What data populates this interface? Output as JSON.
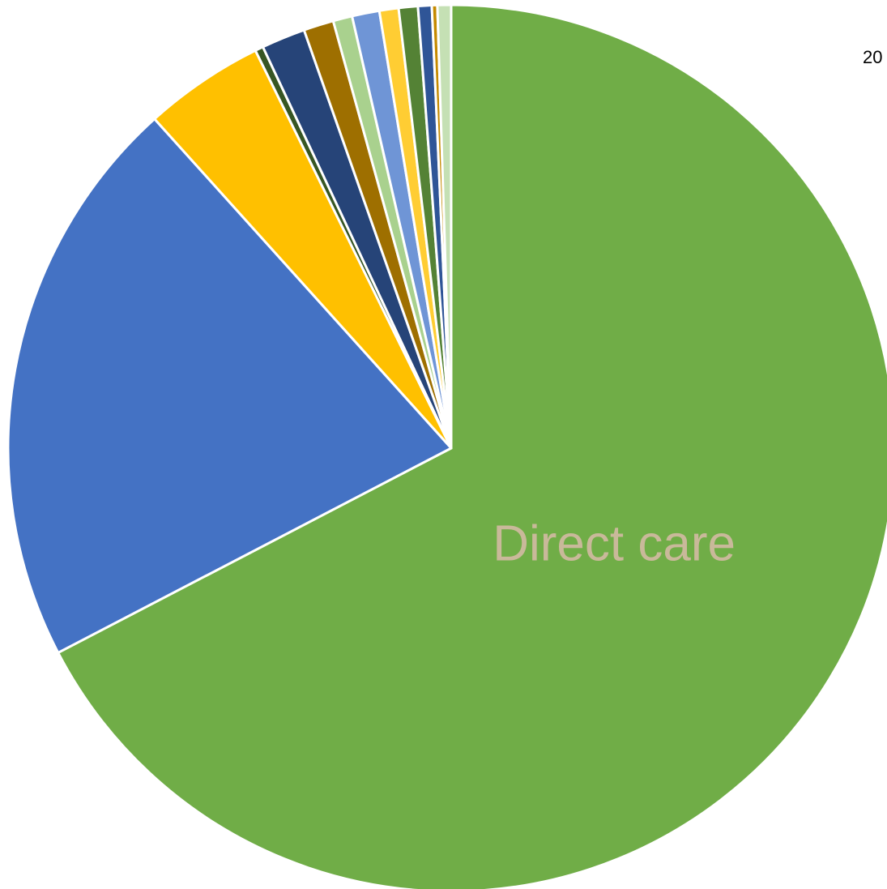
{
  "corner_text": "20",
  "chart_data": {
    "type": "pie",
    "start_angle_deg": 0,
    "direction": "clockwise",
    "slices": [
      {
        "label": "Direct care",
        "value": 67.5,
        "color": "#70AD47",
        "show_label": true,
        "label_color": "#C9B99A"
      },
      {
        "label": "",
        "value": 21.0,
        "color": "#4472C4",
        "show_label": false
      },
      {
        "label": "",
        "value": 4.4,
        "color": "#FFC000",
        "show_label": false
      },
      {
        "label": "",
        "value": 0.3,
        "color": "#375623",
        "show_label": false
      },
      {
        "label": "",
        "value": 1.6,
        "color": "#264478",
        "show_label": false
      },
      {
        "label": "",
        "value": 1.1,
        "color": "#9E6F00",
        "show_label": false
      },
      {
        "label": "",
        "value": 0.7,
        "color": "#A9D18E",
        "show_label": false
      },
      {
        "label": "",
        "value": 1.0,
        "color": "#6F95D6",
        "show_label": false
      },
      {
        "label": "",
        "value": 0.7,
        "color": "#FFCD33",
        "show_label": false
      },
      {
        "label": "",
        "value": 0.7,
        "color": "#548235",
        "show_label": false
      },
      {
        "label": "",
        "value": 0.5,
        "color": "#2F5597",
        "show_label": false
      },
      {
        "label": "",
        "value": 0.2,
        "color": "#C58A00",
        "show_label": false
      },
      {
        "label": "",
        "value": 0.5,
        "color": "#C5E0B4",
        "show_label": false
      }
    ]
  }
}
